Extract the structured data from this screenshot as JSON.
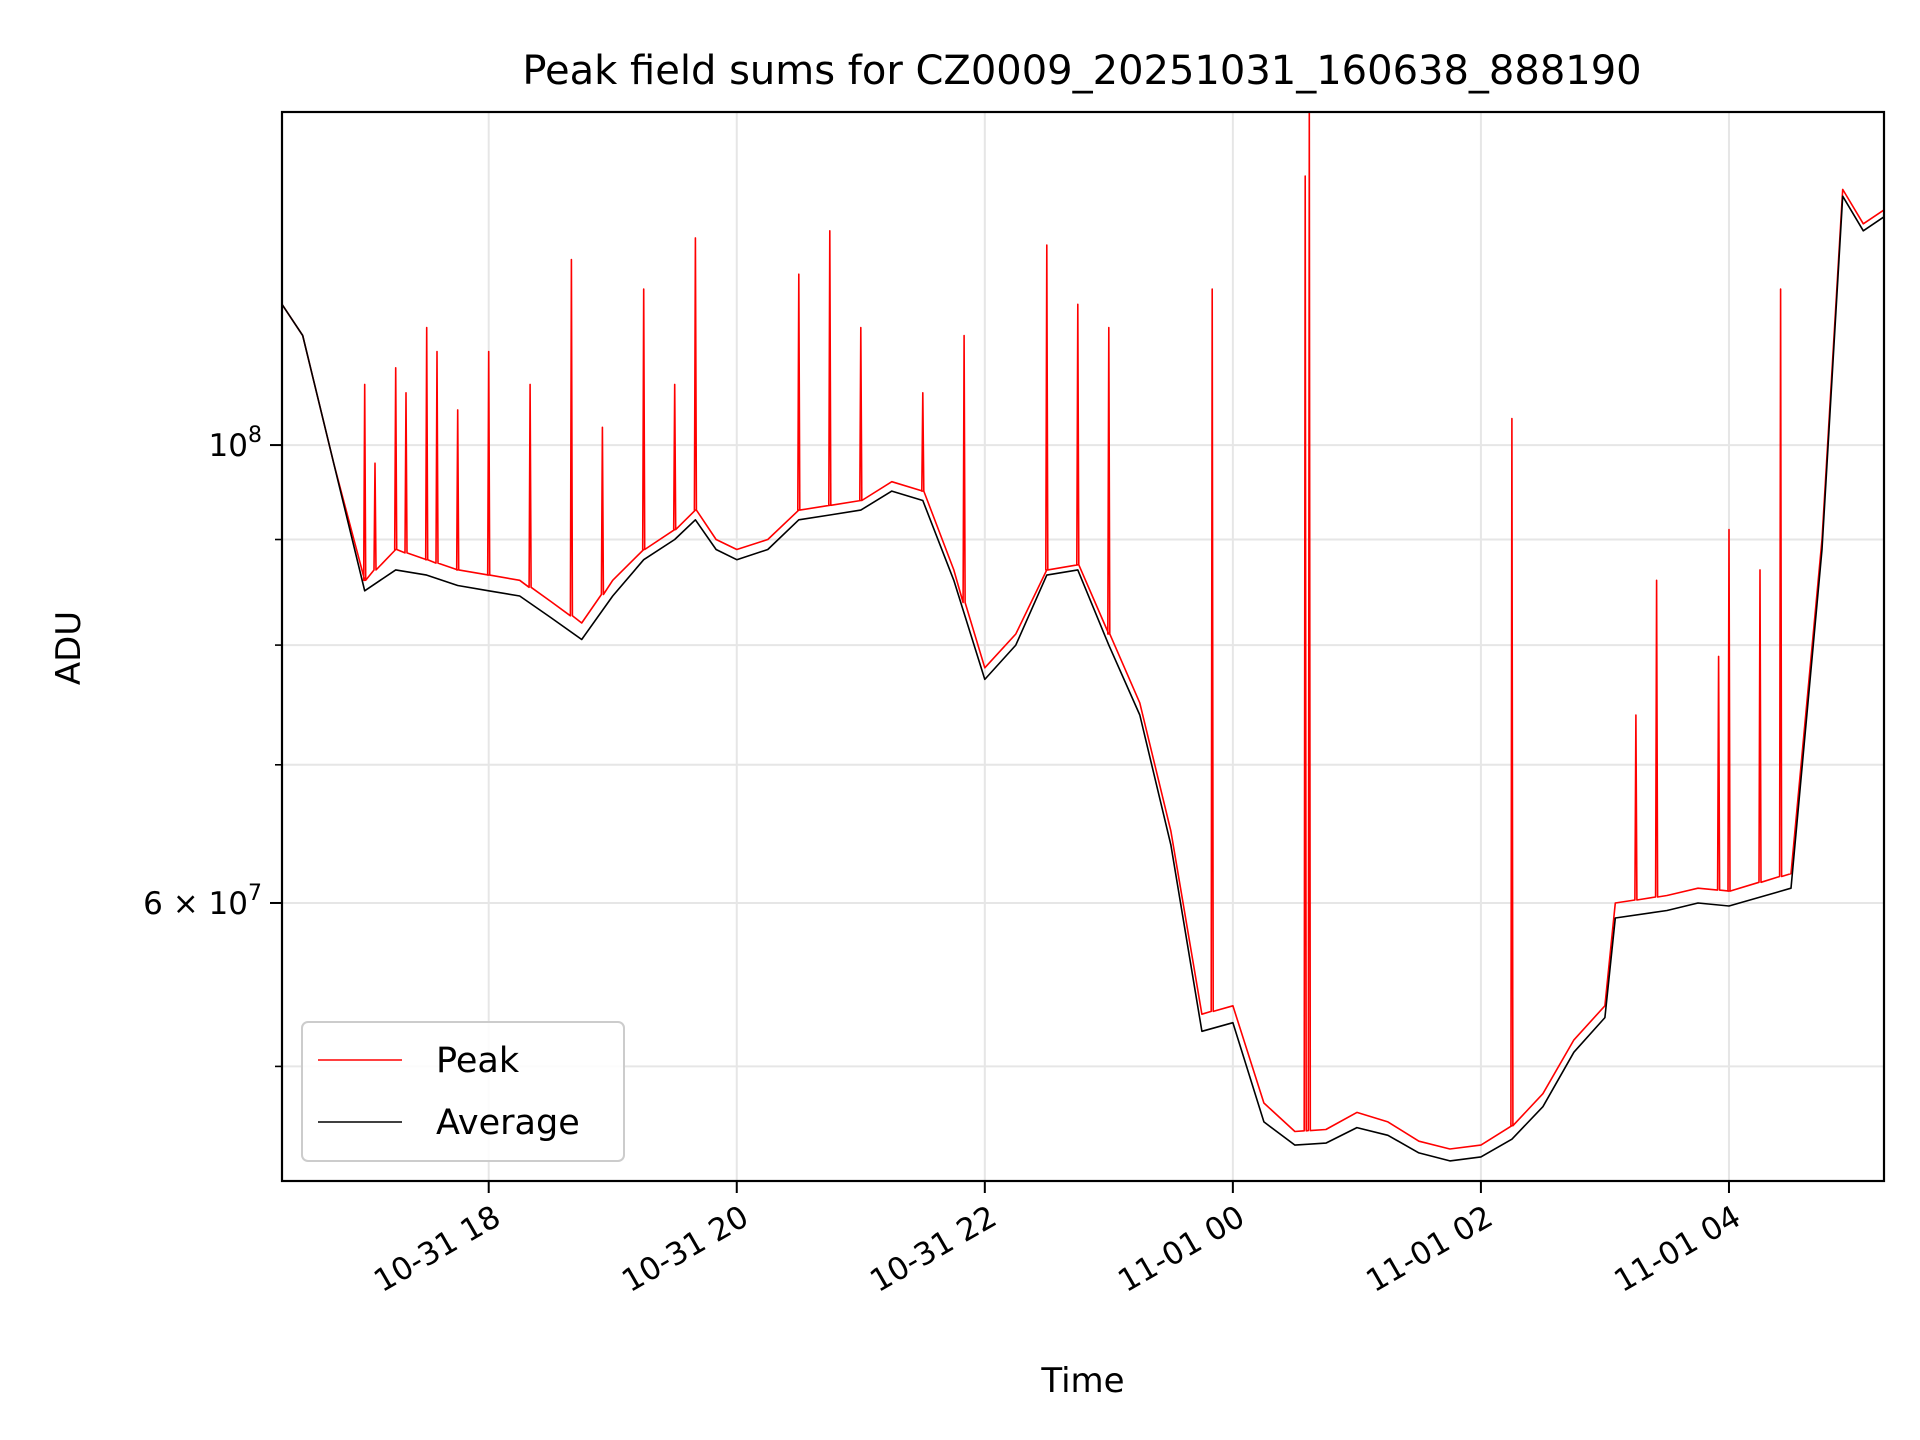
{
  "chart_data": {
    "type": "line",
    "title": "Peak field sums for CZ0009_20251031_160638_888190",
    "xlabel": "Time",
    "ylabel": "ADU",
    "x_axis": "time",
    "xlim": [
      "2025-10-31 16:20",
      "2025-11-01 05:15"
    ],
    "y_scale": "log",
    "ylim": [
      44000000,
      145000000
    ],
    "grid": true,
    "legend_placement": "lower-left",
    "x_ticks": [
      {
        "t": "2025-10-31 18:00",
        "label": "10-31 18"
      },
      {
        "t": "2025-10-31 20:00",
        "label": "10-31 20"
      },
      {
        "t": "2025-10-31 22:00",
        "label": "10-31 22"
      },
      {
        "t": "2025-11-01 00:00",
        "label": "11-01 00"
      },
      {
        "t": "2025-11-01 02:00",
        "label": "11-01 02"
      },
      {
        "t": "2025-11-01 04:00",
        "label": "11-01 04"
      }
    ],
    "y_ticks_labeled": [
      {
        "value": 60000000,
        "label_base": "6 × 10",
        "label_exp": "7"
      },
      {
        "value": 100000000,
        "label_base": "10",
        "label_exp": "8"
      }
    ],
    "y_minor_ticks": [
      50000000,
      70000000,
      80000000,
      90000000
    ],
    "series": [
      {
        "name": "Peak",
        "color": "#ff0000",
        "points": [
          [
            "2025-10-31 16:20",
            117000000
          ],
          [
            "2025-10-31 16:30",
            113000000
          ],
          [
            "2025-10-31 16:45",
            98000000
          ],
          [
            "2025-10-31 17:00",
            86000000
          ],
          [
            "2025-10-31 17:15",
            89000000
          ],
          [
            "2025-10-31 17:30",
            88000000
          ],
          [
            "2025-10-31 17:45",
            87000000
          ],
          [
            "2025-10-31 18:00",
            86500000
          ],
          [
            "2025-10-31 18:15",
            86000000
          ],
          [
            "2025-10-31 18:30",
            84000000
          ],
          [
            "2025-10-31 18:45",
            82000000
          ],
          [
            "2025-10-31 19:00",
            86000000
          ],
          [
            "2025-10-31 19:15",
            89000000
          ],
          [
            "2025-10-31 19:30",
            91000000
          ],
          [
            "2025-10-31 19:40",
            93000000
          ],
          [
            "2025-10-31 19:50",
            90000000
          ],
          [
            "2025-10-31 20:00",
            89000000
          ],
          [
            "2025-10-31 20:15",
            90000000
          ],
          [
            "2025-10-31 20:30",
            93000000
          ],
          [
            "2025-10-31 20:45",
            93500000
          ],
          [
            "2025-10-31 21:00",
            94000000
          ],
          [
            "2025-10-31 21:15",
            96000000
          ],
          [
            "2025-10-31 21:30",
            95000000
          ],
          [
            "2025-10-31 21:45",
            87000000
          ],
          [
            "2025-10-31 22:00",
            78000000
          ],
          [
            "2025-10-31 22:15",
            81000000
          ],
          [
            "2025-10-31 22:30",
            87000000
          ],
          [
            "2025-10-31 22:45",
            87500000
          ],
          [
            "2025-10-31 23:00",
            81000000
          ],
          [
            "2025-10-31 23:15",
            75000000
          ],
          [
            "2025-10-31 23:30",
            65000000
          ],
          [
            "2025-10-31 23:45",
            53000000
          ],
          [
            "2025-11-01 00:00",
            53500000
          ],
          [
            "2025-11-01 00:15",
            48000000
          ],
          [
            "2025-11-01 00:30",
            46500000
          ],
          [
            "2025-11-01 00:45",
            46600000
          ],
          [
            "2025-11-01 01:00",
            47500000
          ],
          [
            "2025-11-01 01:15",
            47000000
          ],
          [
            "2025-11-01 01:30",
            46000000
          ],
          [
            "2025-11-01 01:45",
            45600000
          ],
          [
            "2025-11-01 02:00",
            45800000
          ],
          [
            "2025-11-01 02:15",
            46800000
          ],
          [
            "2025-11-01 02:30",
            48500000
          ],
          [
            "2025-11-01 02:45",
            51500000
          ],
          [
            "2025-11-01 03:00",
            53500000
          ],
          [
            "2025-11-01 03:05",
            60000000
          ],
          [
            "2025-11-01 03:30",
            60500000
          ],
          [
            "2025-11-01 03:45",
            61000000
          ],
          [
            "2025-11-01 04:00",
            60800000
          ],
          [
            "2025-11-01 04:30",
            62000000
          ],
          [
            "2025-11-01 04:45",
            90000000
          ],
          [
            "2025-11-01 04:55",
            133000000
          ],
          [
            "2025-11-01 05:05",
            128000000
          ],
          [
            "2025-11-01 05:15",
            130000000
          ]
        ],
        "spikes": [
          [
            "2025-10-31 17:00",
            107000000
          ],
          [
            "2025-10-31 17:05",
            98000000
          ],
          [
            "2025-10-31 17:15",
            109000000
          ],
          [
            "2025-10-31 17:20",
            106000000
          ],
          [
            "2025-10-31 17:30",
            114000000
          ],
          [
            "2025-10-31 17:35",
            111000000
          ],
          [
            "2025-10-31 17:45",
            104000000
          ],
          [
            "2025-10-31 18:00",
            111000000
          ],
          [
            "2025-10-31 18:20",
            107000000
          ],
          [
            "2025-10-31 18:40",
            123000000
          ],
          [
            "2025-10-31 18:55",
            102000000
          ],
          [
            "2025-10-31 19:15",
            119000000
          ],
          [
            "2025-10-31 19:30",
            107000000
          ],
          [
            "2025-10-31 19:40",
            126000000
          ],
          [
            "2025-10-31 20:30",
            121000000
          ],
          [
            "2025-10-31 20:45",
            127000000
          ],
          [
            "2025-10-31 21:00",
            114000000
          ],
          [
            "2025-10-31 21:30",
            106000000
          ],
          [
            "2025-10-31 21:50",
            113000000
          ],
          [
            "2025-10-31 22:30",
            125000000
          ],
          [
            "2025-10-31 22:45",
            117000000
          ],
          [
            "2025-10-31 23:00",
            114000000
          ],
          [
            "2025-10-31 23:50",
            119000000
          ],
          [
            "2025-11-01 00:35",
            135000000
          ],
          [
            "2025-11-01 00:37",
            145000000
          ],
          [
            "2025-11-01 02:15",
            103000000
          ],
          [
            "2025-11-01 03:15",
            74000000
          ],
          [
            "2025-11-01 03:25",
            86000000
          ],
          [
            "2025-11-01 03:55",
            79000000
          ],
          [
            "2025-11-01 04:00",
            91000000
          ],
          [
            "2025-11-01 04:15",
            87000000
          ],
          [
            "2025-11-01 04:25",
            119000000
          ]
        ]
      },
      {
        "name": "Average",
        "color": "#000000",
        "points": [
          [
            "2025-10-31 16:20",
            117000000
          ],
          [
            "2025-10-31 16:30",
            113000000
          ],
          [
            "2025-10-31 16:45",
            98000000
          ],
          [
            "2025-10-31 17:00",
            85000000
          ],
          [
            "2025-10-31 17:15",
            87000000
          ],
          [
            "2025-10-31 17:30",
            86500000
          ],
          [
            "2025-10-31 17:45",
            85500000
          ],
          [
            "2025-10-31 18:00",
            85000000
          ],
          [
            "2025-10-31 18:15",
            84500000
          ],
          [
            "2025-10-31 18:30",
            82500000
          ],
          [
            "2025-10-31 18:45",
            80500000
          ],
          [
            "2025-10-31 19:00",
            84500000
          ],
          [
            "2025-10-31 19:15",
            88000000
          ],
          [
            "2025-10-31 19:30",
            90000000
          ],
          [
            "2025-10-31 19:40",
            92000000
          ],
          [
            "2025-10-31 19:50",
            89000000
          ],
          [
            "2025-10-31 20:00",
            88000000
          ],
          [
            "2025-10-31 20:15",
            89000000
          ],
          [
            "2025-10-31 20:30",
            92000000
          ],
          [
            "2025-10-31 20:45",
            92500000
          ],
          [
            "2025-10-31 21:00",
            93000000
          ],
          [
            "2025-10-31 21:15",
            95000000
          ],
          [
            "2025-10-31 21:30",
            94000000
          ],
          [
            "2025-10-31 21:45",
            86000000
          ],
          [
            "2025-10-31 22:00",
            77000000
          ],
          [
            "2025-10-31 22:15",
            80000000
          ],
          [
            "2025-10-31 22:30",
            86500000
          ],
          [
            "2025-10-31 22:45",
            87000000
          ],
          [
            "2025-10-31 23:00",
            80000000
          ],
          [
            "2025-10-31 23:15",
            74000000
          ],
          [
            "2025-10-31 23:30",
            64000000
          ],
          [
            "2025-10-31 23:45",
            52000000
          ],
          [
            "2025-11-01 00:00",
            52500000
          ],
          [
            "2025-11-01 00:15",
            47000000
          ],
          [
            "2025-11-01 00:30",
            45800000
          ],
          [
            "2025-11-01 00:45",
            45900000
          ],
          [
            "2025-11-01 01:00",
            46700000
          ],
          [
            "2025-11-01 01:15",
            46300000
          ],
          [
            "2025-11-01 01:30",
            45400000
          ],
          [
            "2025-11-01 01:45",
            45000000
          ],
          [
            "2025-11-01 02:00",
            45200000
          ],
          [
            "2025-11-01 02:15",
            46100000
          ],
          [
            "2025-11-01 02:30",
            47800000
          ],
          [
            "2025-11-01 02:45",
            50800000
          ],
          [
            "2025-11-01 03:00",
            52800000
          ],
          [
            "2025-11-01 03:05",
            59000000
          ],
          [
            "2025-11-01 03:30",
            59500000
          ],
          [
            "2025-11-01 03:45",
            60000000
          ],
          [
            "2025-11-01 04:00",
            59800000
          ],
          [
            "2025-11-01 04:30",
            61000000
          ],
          [
            "2025-11-01 04:45",
            89000000
          ],
          [
            "2025-11-01 04:55",
            132000000
          ],
          [
            "2025-11-01 05:05",
            127000000
          ],
          [
            "2025-11-01 05:15",
            129000000
          ]
        ]
      }
    ]
  }
}
